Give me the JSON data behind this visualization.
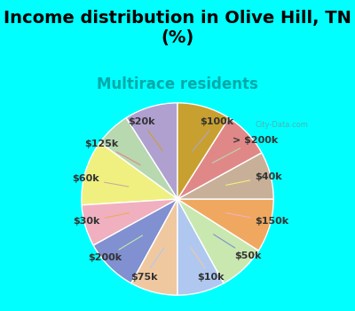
{
  "title": "Income distribution in Olive Hill, TN\n(%)",
  "subtitle": "Multirace residents",
  "title_fontsize": 14,
  "subtitle_fontsize": 12,
  "background_color": "#00FFFF",
  "chart_bg_color": "#e8f5e8",
  "watermark": "City-Data.com",
  "labels": [
    "$100k",
    "> $200k",
    "$40k",
    "$150k",
    "$50k",
    "$10k",
    "$75k",
    "$200k",
    "$30k",
    "$60k",
    "$125k",
    "$20k"
  ],
  "values": [
    9,
    6,
    11,
    7,
    9,
    8,
    8,
    8,
    9,
    8,
    8,
    9
  ],
  "colors": [
    "#b0a0d0",
    "#b8d8b0",
    "#f0f080",
    "#f0b0c0",
    "#8090d0",
    "#f0c8a0",
    "#b0c8f0",
    "#c8e8b0",
    "#f0a860",
    "#c8b098",
    "#e08888",
    "#c8a030"
  ],
  "label_fontsize": 8,
  "startangle": 90
}
